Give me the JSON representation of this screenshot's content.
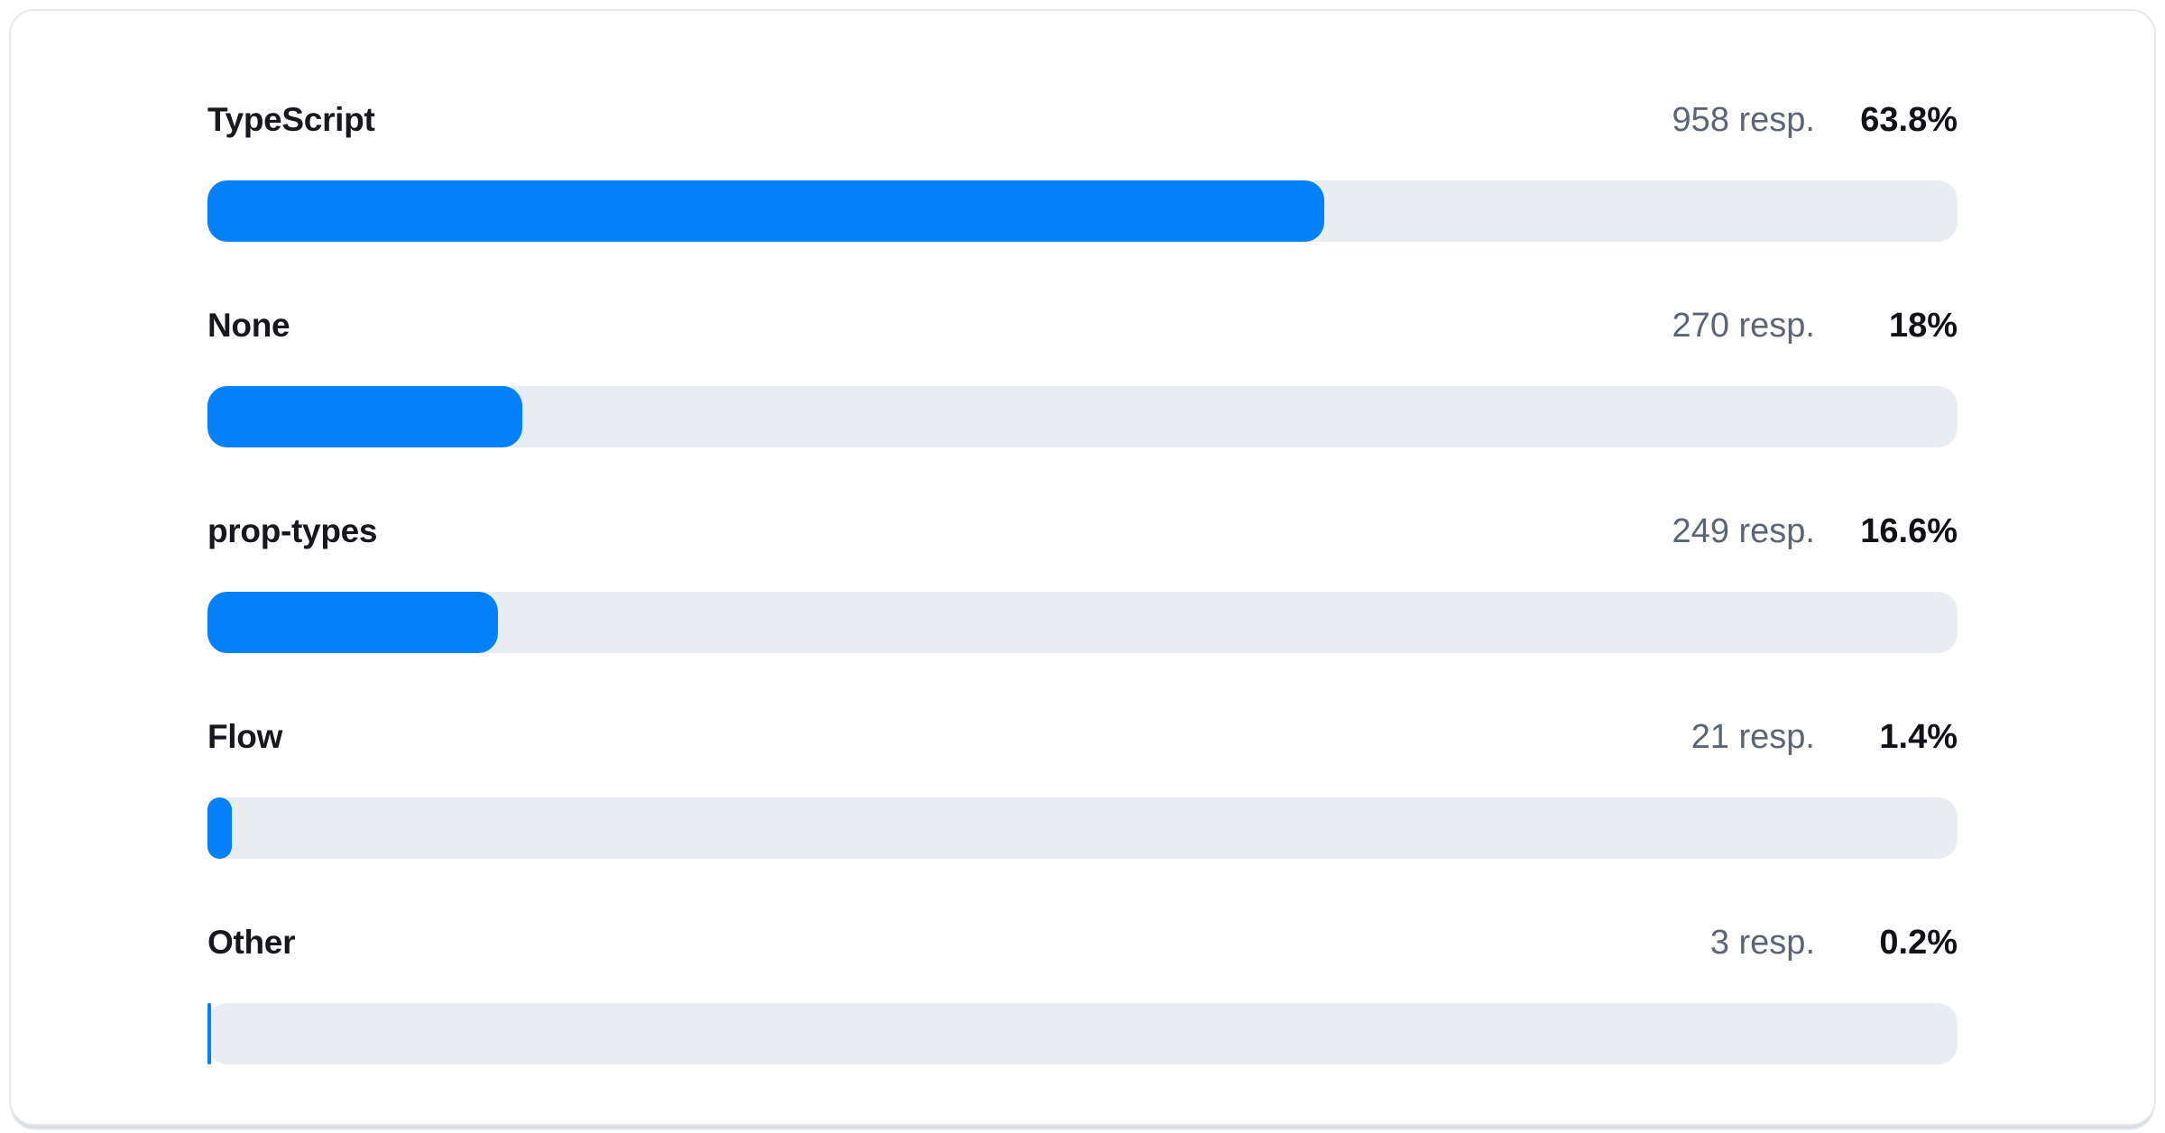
{
  "chart_data": {
    "type": "bar",
    "orientation": "horizontal",
    "title": "",
    "categories": [
      "TypeScript",
      "None",
      "prop-types",
      "Flow",
      "Other"
    ],
    "series": [
      {
        "name": "responses",
        "values": [
          958,
          270,
          249,
          21,
          3
        ]
      },
      {
        "name": "percent",
        "values": [
          63.8,
          18,
          16.6,
          1.4,
          0.2
        ]
      }
    ],
    "xlabel": "",
    "ylabel": "",
    "xlim": [
      0,
      100
    ],
    "grid": false,
    "legend_position": "none",
    "bar_color": "#0580FB",
    "track_color": "#E9ECF1"
  },
  "rows": [
    {
      "label": "TypeScript",
      "responses": "958 resp.",
      "percent": "63.8%",
      "pct_value": 63.8
    },
    {
      "label": "None",
      "responses": "270 resp.",
      "percent": "18%",
      "pct_value": 18
    },
    {
      "label": "prop-types",
      "responses": "249 resp.",
      "percent": "16.6%",
      "pct_value": 16.6
    },
    {
      "label": "Flow",
      "responses": "21 resp.",
      "percent": "1.4%",
      "pct_value": 1.4
    },
    {
      "label": "Other",
      "responses": "3 resp.",
      "percent": "0.2%",
      "pct_value": 0.2
    }
  ],
  "colors": {
    "bar_fill": "#0580FB",
    "bar_track": "#E9ECF1",
    "label_text": "#16181D",
    "responses_text": "#5A6575",
    "percent_text": "#101218",
    "card_border": "#E3E6EB",
    "card_background": "#FFFFFF"
  }
}
